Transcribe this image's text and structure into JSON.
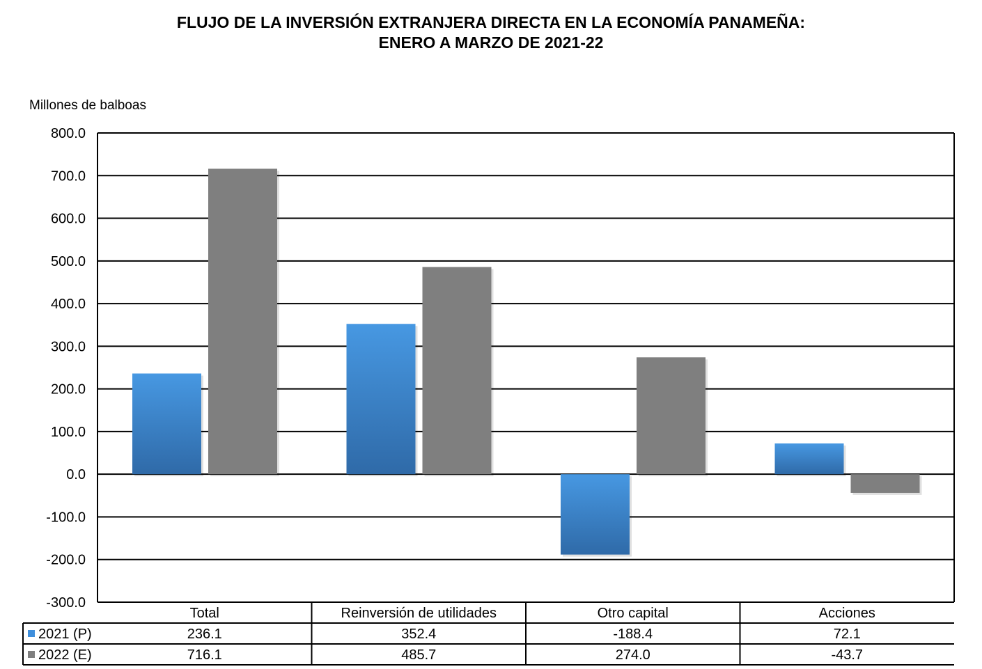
{
  "chart_data": {
    "type": "bar",
    "title_line1": "FLUJO DE LA INVERSIÓN EXTRANJERA DIRECTA EN LA ECONOMÍA PANAMEÑA:",
    "title_line2": "ENERO A MARZO DE 2021-22",
    "ylabel": "Millones de balboas",
    "xlabel": "",
    "ylim": [
      -300,
      800
    ],
    "yticks": [
      800,
      700,
      600,
      500,
      400,
      300,
      200,
      100,
      0,
      -100,
      -200,
      -300
    ],
    "ytick_labels": [
      "800.0",
      "700.0",
      "600.0",
      "500.0",
      "400.0",
      "300.0",
      "200.0",
      "100.0",
      "0.0",
      "-100.0",
      "-200.0",
      "-300.0"
    ],
    "grid": true,
    "legend_placement": "data-table-bottom",
    "categories": [
      "Total",
      "Reinversión de utilidades",
      "Otro capital",
      "Acciones"
    ],
    "series": [
      {
        "name": "2021 (P)",
        "color": "#3f8fdc",
        "color_dark": "#2f6aa8",
        "values": [
          236.1,
          352.4,
          -188.4,
          72.1
        ],
        "labels": [
          "236.1",
          "352.4",
          "-188.4",
          "72.1"
        ]
      },
      {
        "name": "2022 (E)",
        "color": "#7f7f7f",
        "color_dark": "#7f7f7f",
        "values": [
          716.1,
          485.7,
          274.0,
          -43.7
        ],
        "labels": [
          "716.1",
          "485.7",
          "274.0",
          "-43.7"
        ]
      }
    ]
  }
}
